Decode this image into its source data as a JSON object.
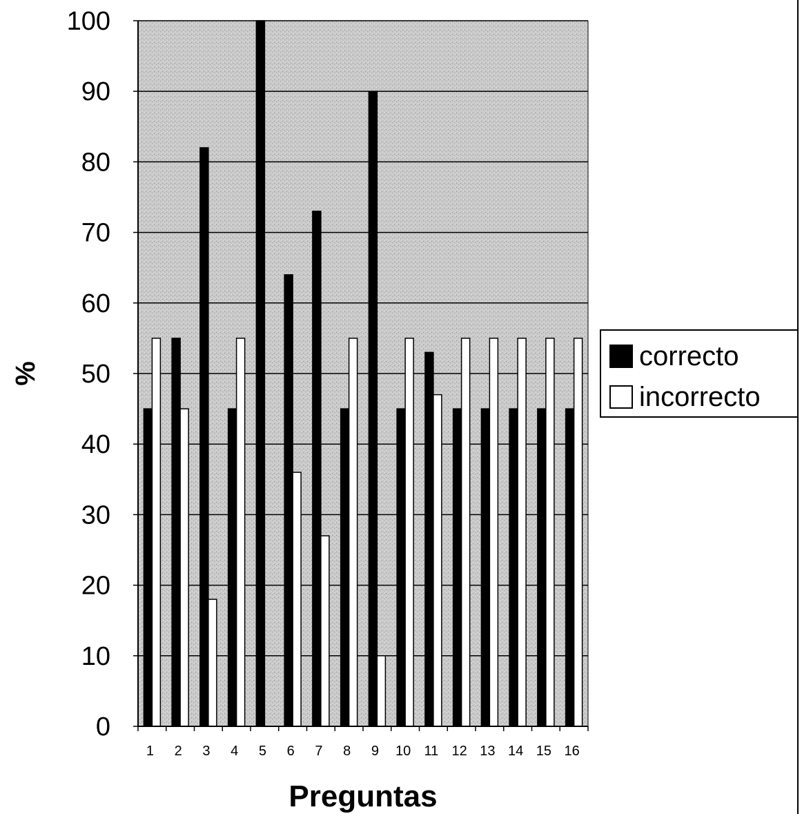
{
  "chart_data": {
    "type": "bar",
    "title": "",
    "xlabel": "Preguntas",
    "ylabel": "%",
    "ylim": [
      0,
      100
    ],
    "yticks": [
      "0",
      "10",
      "20",
      "30",
      "40",
      "50",
      "60",
      "70",
      "80",
      "90",
      "100"
    ],
    "categories": [
      "1",
      "2",
      "3",
      "4",
      "5",
      "6",
      "7",
      "8",
      "9",
      "10",
      "11",
      "12",
      "13",
      "14",
      "15",
      "16"
    ],
    "series": [
      {
        "name": "correcto",
        "color": "#000000",
        "values": [
          45,
          55,
          82,
          45,
          100,
          64,
          73,
          45,
          90,
          45,
          53,
          45,
          45,
          45,
          45,
          45
        ]
      },
      {
        "name": "incorrecto",
        "color": "#ffffff",
        "values": [
          55,
          45,
          18,
          55,
          0,
          36,
          27,
          55,
          10,
          55,
          47,
          55,
          55,
          55,
          55,
          55
        ]
      }
    ],
    "grid": true,
    "plot_background": "#c8c8c8",
    "legend_position": "right"
  }
}
